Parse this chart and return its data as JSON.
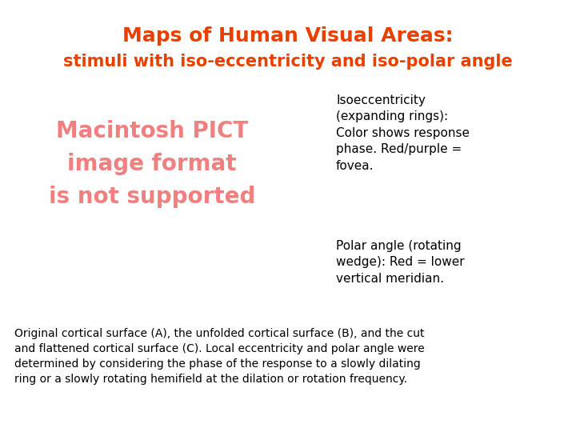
{
  "title_line1": "Maps of Human Visual Areas:",
  "title_line2": "stimuli with iso-eccentricity and iso-polar angle",
  "title_color": "#E84000",
  "pict_text": "Macintosh PICT\nimage format\nis not supported",
  "pict_color": "#F08080",
  "iso_text": "Isoeccentricity\n(expanding rings):\nColor shows response\nphase. Red/purple =\nfovea.",
  "polar_text": "Polar angle (rotating\nwedge): Red = lower\nvertical meridian.",
  "caption_text": "Original cortical surface (A), the unfolded cortical surface (B), and the cut\nand flattened cortical surface (C). Local eccentricity and polar angle were\ndetermined by considering the phase of the response to a slowly dilating\nring or a slowly rotating hemifield at the dilation or rotation frequency.",
  "background_color": "#FFFFFF",
  "text_color": "#000000",
  "figwidth": 7.2,
  "figheight": 5.4,
  "dpi": 100,
  "title1_fontsize": 18,
  "title2_fontsize": 15,
  "pict_fontsize": 20,
  "side_fontsize": 11,
  "caption_fontsize": 10
}
